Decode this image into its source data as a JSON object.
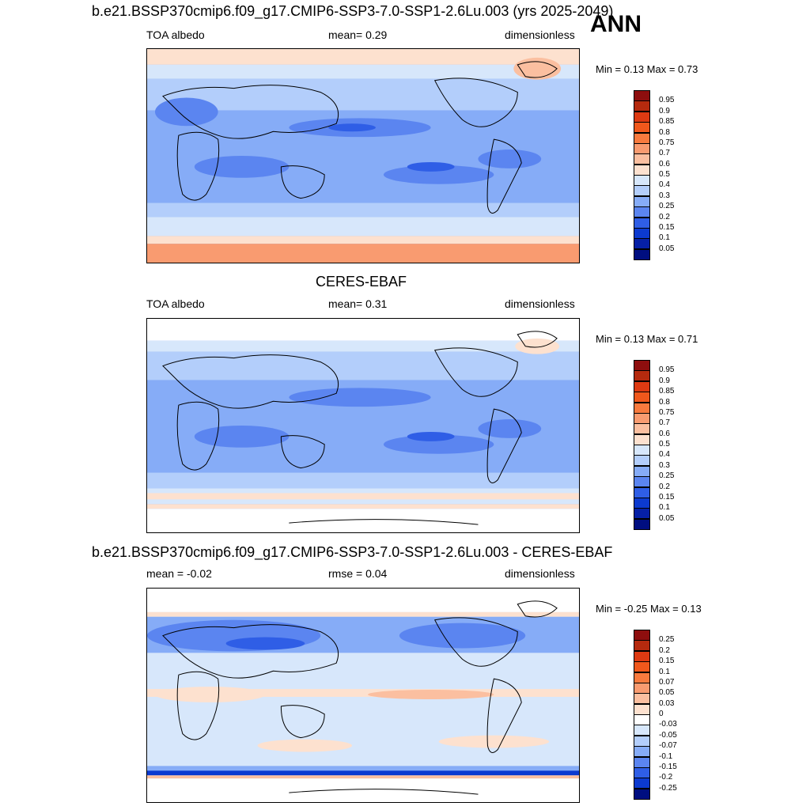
{
  "season": "ANN",
  "panels": [
    {
      "id": "test",
      "title": "b.e21.BSSP370cmip6.f09_g17.CMIP6-SSP3-7.0-SSP1-2.6Lu.003 (yrs 2025-2049)",
      "left_label": "TOA albedo",
      "center_label": "mean=   0.29",
      "right_label": "dimensionless",
      "minmax": "Min =   0.13 Max =   0.73",
      "colorbar_labels": [
        "0.95",
        "0.9",
        "0.85",
        "0.8",
        "0.75",
        "0.7",
        "0.6",
        "0.5",
        "0.4",
        "0.3",
        "0.25",
        "0.2",
        "0.15",
        "0.1",
        "0.05"
      ],
      "colorbar_colors": [
        "#8e0e0e",
        "#b52a0e",
        "#dd3a12",
        "#f0581c",
        "#f87a3e",
        "#f99b70",
        "#fbbfa0",
        "#fde1cf",
        "#d7e7fb",
        "#b3cefb",
        "#86acf7",
        "#5b85f0",
        "#2f5ee6",
        "#0c3ad0",
        "#0620a6",
        "#000e80"
      ]
    },
    {
      "id": "obs",
      "title": "CERES-EBAF",
      "left_label": "TOA albedo",
      "center_label": "mean=   0.31",
      "right_label": "dimensionless",
      "minmax": "Min =   0.13 Max =   0.71",
      "colorbar_labels": [
        "0.95",
        "0.9",
        "0.85",
        "0.8",
        "0.75",
        "0.7",
        "0.6",
        "0.5",
        "0.4",
        "0.3",
        "0.25",
        "0.2",
        "0.15",
        "0.1",
        "0.05"
      ],
      "colorbar_colors": [
        "#8e0e0e",
        "#b52a0e",
        "#dd3a12",
        "#f0581c",
        "#f87a3e",
        "#f99b70",
        "#fbbfa0",
        "#fde1cf",
        "#d7e7fb",
        "#b3cefb",
        "#86acf7",
        "#5b85f0",
        "#2f5ee6",
        "#0c3ad0",
        "#0620a6",
        "#000e80"
      ]
    },
    {
      "id": "diff",
      "title": "b.e21.BSSP370cmip6.f09_g17.CMIP6-SSP3-7.0-SSP1-2.6Lu.003 - CERES-EBAF",
      "left_label": "mean =  -0.02",
      "center_label": "rmse =   0.04",
      "right_label": "dimensionless",
      "minmax": "Min =  -0.25 Max =   0.13",
      "colorbar_labels": [
        "0.25",
        "0.2",
        "0.15",
        "0.1",
        "0.07",
        "0.05",
        "0.03",
        "0",
        "-0.03",
        "-0.05",
        "-0.07",
        "-0.1",
        "-0.15",
        "-0.2",
        "-0.25"
      ],
      "colorbar_colors": [
        "#8e0e0e",
        "#b52a0e",
        "#dd3a12",
        "#f0581c",
        "#f87a3e",
        "#f99b70",
        "#fbbfa0",
        "#fde1cf",
        "#ffffff",
        "#d7e7fb",
        "#b3cefb",
        "#86acf7",
        "#5b85f0",
        "#2f5ee6",
        "#0c3ad0",
        "#000e80"
      ]
    }
  ]
}
